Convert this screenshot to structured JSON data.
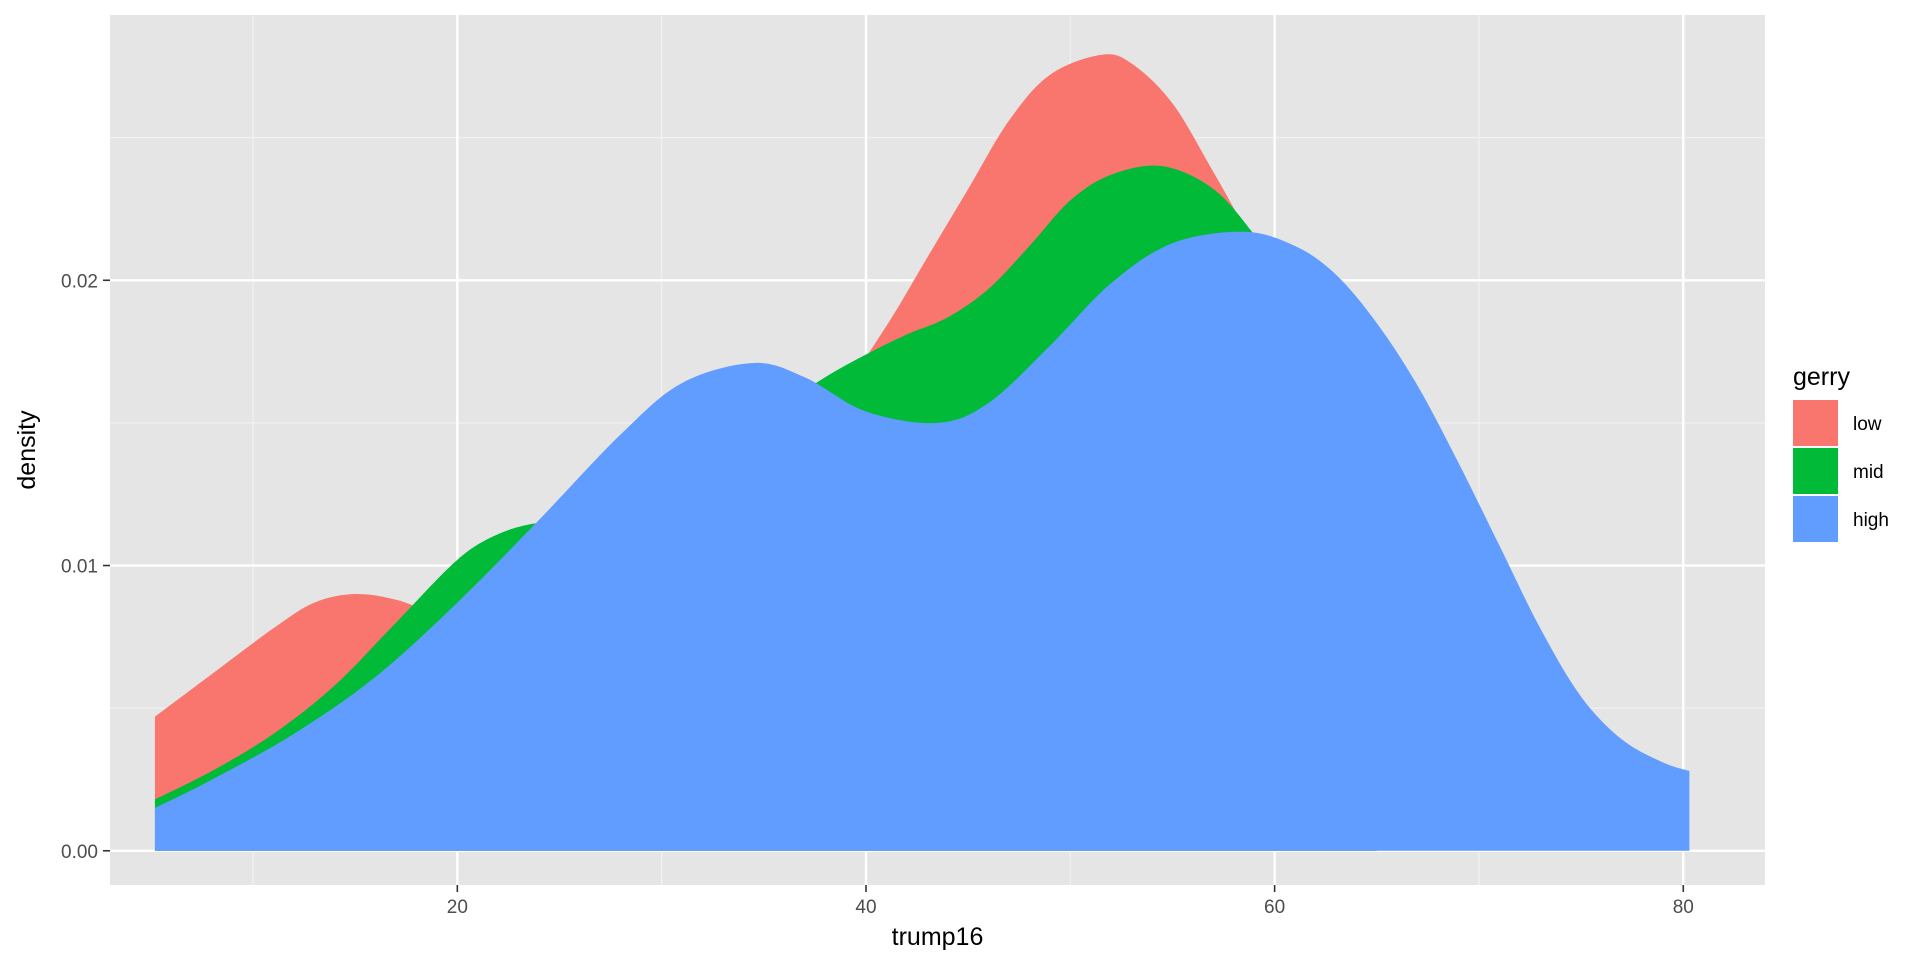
{
  "chart_data": {
    "type": "area",
    "xlabel": "trump16",
    "ylabel": "density",
    "xlim": [
      3.0,
      84.0
    ],
    "ylim": [
      -0.0012,
      0.0293
    ],
    "x_ticks": [
      20,
      40,
      60,
      80
    ],
    "x_tick_labels": [
      "20",
      "40",
      "60",
      "80"
    ],
    "x_minor_ticks": [
      10,
      30,
      50,
      70
    ],
    "y_ticks": [
      0.0,
      0.01,
      0.02
    ],
    "y_tick_labels": [
      "0.00",
      "0.01",
      "0.02"
    ],
    "y_minor_ticks": [
      0.005,
      0.015,
      0.025
    ],
    "grid": true,
    "legend": {
      "title": "gerry",
      "position": "right"
    },
    "series": [
      {
        "name": "low",
        "color": "#F8766D",
        "x": [
          5.2,
          8,
          11,
          13,
          15,
          17,
          19,
          21,
          23,
          25,
          27,
          29,
          31,
          33,
          35,
          37,
          39,
          41,
          43,
          45,
          47,
          49,
          51.5,
          53,
          55,
          57,
          59,
          61,
          63,
          65
        ],
        "y": [
          0.0047,
          0.0062,
          0.0078,
          0.0087,
          0.009,
          0.0088,
          0.0083,
          0.0081,
          0.0084,
          0.0094,
          0.0108,
          0.0123,
          0.0136,
          0.0146,
          0.0152,
          0.0156,
          0.0164,
          0.0184,
          0.0208,
          0.0232,
          0.0256,
          0.0272,
          0.0279,
          0.0276,
          0.0262,
          0.0238,
          0.0213,
          0.0192,
          0.0165,
          0.0138
        ]
      },
      {
        "name": "mid",
        "color": "#00BA38",
        "x": [
          5.2,
          8,
          11,
          14,
          17,
          20,
          22,
          24,
          26,
          28,
          30,
          32,
          34,
          36,
          38,
          40,
          42,
          44,
          46,
          48,
          50,
          52,
          54.5,
          57,
          59,
          61,
          63,
          65
        ],
        "y": [
          0.0018,
          0.0028,
          0.0041,
          0.0058,
          0.008,
          0.0102,
          0.0111,
          0.0115,
          0.0115,
          0.0114,
          0.0117,
          0.0127,
          0.0142,
          0.0156,
          0.0166,
          0.0174,
          0.0181,
          0.0187,
          0.0197,
          0.0212,
          0.0228,
          0.0237,
          0.024,
          0.0232,
          0.0216,
          0.0196,
          0.0172,
          0.0148
        ]
      },
      {
        "name": "high",
        "color": "#619CFF",
        "x": [
          5.2,
          8,
          12,
          16,
          20,
          24,
          28,
          31,
          34.5,
          37,
          40,
          43.5,
          46,
          49,
          52,
          55,
          58.5,
          61,
          63,
          65,
          67,
          69,
          71,
          73,
          75,
          77,
          79,
          80.3
        ],
        "y": [
          0.0015,
          0.0025,
          0.0041,
          0.0061,
          0.0087,
          0.0116,
          0.0146,
          0.0164,
          0.0171,
          0.0166,
          0.0154,
          0.015,
          0.0157,
          0.0177,
          0.0199,
          0.0213,
          0.0217,
          0.0212,
          0.0202,
          0.0185,
          0.0163,
          0.0136,
          0.0107,
          0.0078,
          0.0054,
          0.0039,
          0.0031,
          0.0028
        ]
      }
    ]
  },
  "colors": {
    "page_background": "#ffffff",
    "panel_background": "#e5e5e5",
    "grid_major": "#ffffff",
    "grid_minor": "#f2f2f2"
  }
}
